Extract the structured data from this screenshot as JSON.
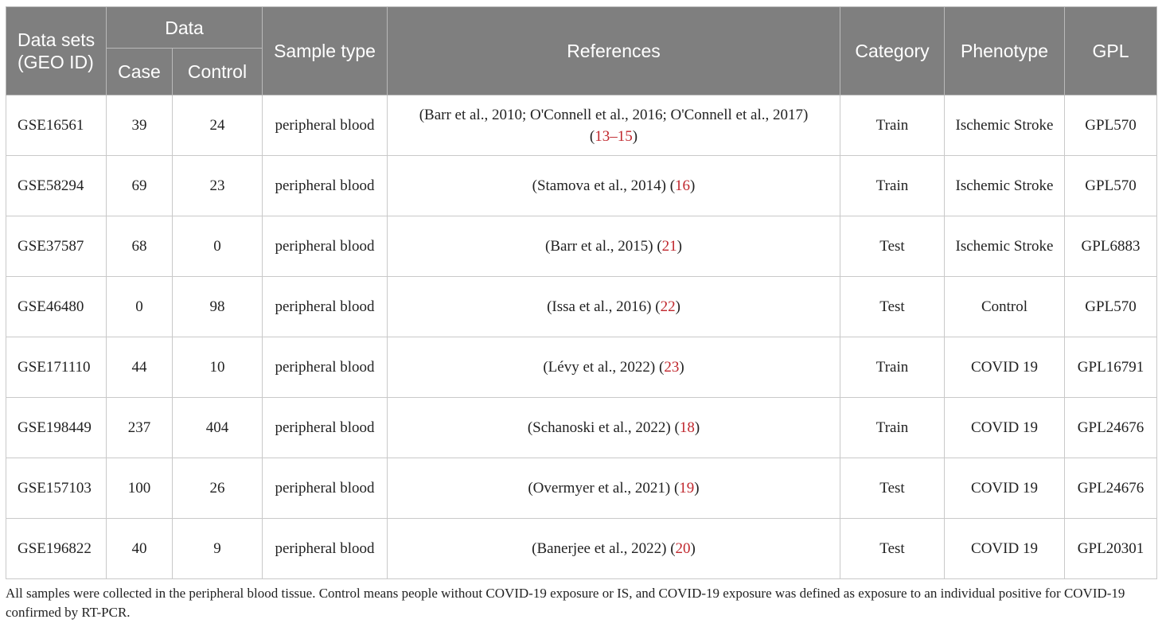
{
  "header": {
    "datasets": "Data sets (GEO ID)",
    "data": "Data",
    "case": "Case",
    "control": "Control",
    "sample_type": "Sample type",
    "references": "References",
    "category": "Category",
    "phenotype": "Phenotype",
    "gpl": "GPL"
  },
  "rows": [
    {
      "id": "GSE16561",
      "case": "39",
      "control": "24",
      "sample": "peripheral blood",
      "ref_text": "(Barr et al., 2010; O'Connell et al., 2016; O'Connell et al., 2017)",
      "ref_num": "13–15",
      "category": "Train",
      "phenotype": "Ischemic Stroke",
      "gpl": "GPL570"
    },
    {
      "id": "GSE58294",
      "case": "69",
      "control": "23",
      "sample": "peripheral blood",
      "ref_text": "(Stamova et al., 2014)",
      "ref_num": "16",
      "category": "Train",
      "phenotype": "Ischemic Stroke",
      "gpl": "GPL570"
    },
    {
      "id": "GSE37587",
      "case": "68",
      "control": "0",
      "sample": "peripheral blood",
      "ref_text": "(Barr et al., 2015)",
      "ref_num": "21",
      "category": "Test",
      "phenotype": "Ischemic Stroke",
      "gpl": "GPL6883"
    },
    {
      "id": "GSE46480",
      "case": "0",
      "control": "98",
      "sample": "peripheral blood",
      "ref_text": "(Issa et al., 2016)",
      "ref_num": "22",
      "category": "Test",
      "phenotype": "Control",
      "gpl": "GPL570"
    },
    {
      "id": "GSE171110",
      "case": "44",
      "control": "10",
      "sample": "peripheral blood",
      "ref_text": "(Lévy et al., 2022)",
      "ref_num": "23",
      "category": "Train",
      "phenotype": "COVID 19",
      "gpl": "GPL16791"
    },
    {
      "id": "GSE198449",
      "case": "237",
      "control": "404",
      "sample": "peripheral blood",
      "ref_text": "(Schanoski et al., 2022)",
      "ref_num": "18",
      "category": "Train",
      "phenotype": "COVID 19",
      "gpl": "GPL24676"
    },
    {
      "id": "GSE157103",
      "case": "100",
      "control": "26",
      "sample": "peripheral blood",
      "ref_text": "(Overmyer et al., 2021)",
      "ref_num": "19",
      "category": "Test",
      "phenotype": "COVID 19",
      "gpl": "GPL24676"
    },
    {
      "id": "GSE196822",
      "case": "40",
      "control": "9",
      "sample": "peripheral blood",
      "ref_text": "(Banerjee et al., 2022)",
      "ref_num": "20",
      "category": "Test",
      "phenotype": "COVID 19",
      "gpl": "GPL20301"
    }
  ],
  "footnote": "All samples were collected in the peripheral blood tissue. Control means people without COVID-19 exposure or IS, and COVID-19 exposure was defined as exposure to an individual positive for COVID-19 confirmed by RT-PCR.",
  "colors": {
    "header_bg": "#7f7f7f",
    "citation": "#c0272d"
  }
}
